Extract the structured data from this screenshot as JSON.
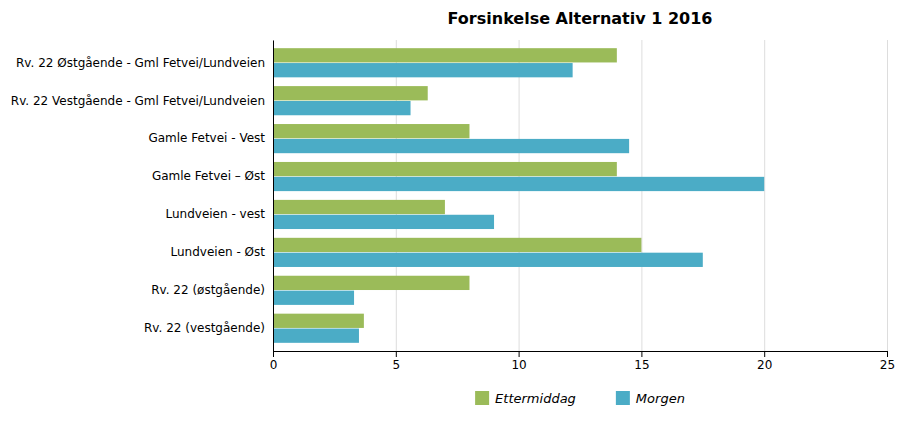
{
  "chart_data": {
    "type": "bar",
    "orientation": "horizontal",
    "title": "Forsinkelse Alternativ 1  2016",
    "categories": [
      "Rv. 22 Østgående  - Gml Fetvei/Lundveien",
      "Rv. 22 Vestgående - Gml Fetvei/Lundveien",
      "Gamle Fetvei - Vest",
      "Gamle Fetvei – Øst",
      "Lundveien - vest",
      "Lundveien - Øst",
      "Rv. 22 (østgående)",
      "Rv. 22 (vestgående)"
    ],
    "series": [
      {
        "name": "Ettermiddag",
        "color": "#9BBB59",
        "values": [
          14.0,
          6.3,
          8.0,
          14.0,
          7.0,
          15.0,
          8.0,
          3.7
        ]
      },
      {
        "name": "Morgen",
        "color": "#4BACC6",
        "values": [
          12.2,
          5.6,
          14.5,
          20.0,
          9.0,
          17.5,
          3.3,
          3.5
        ]
      }
    ],
    "xlim": [
      0,
      25
    ],
    "xticks": [
      0,
      5,
      10,
      15,
      20,
      25
    ],
    "grid": true,
    "legend": "bottom"
  }
}
